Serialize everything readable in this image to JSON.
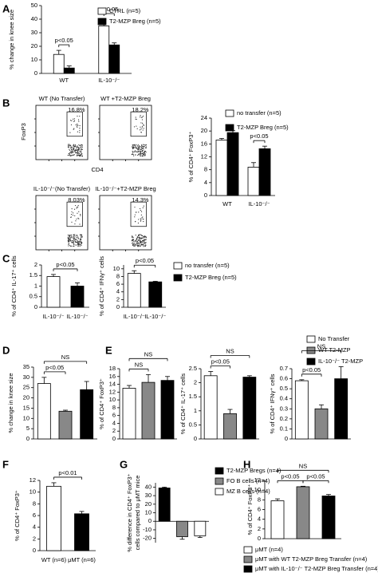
{
  "chart_data": [
    {
      "type": "bar",
      "panel": "A",
      "y_label": "% change in knee size",
      "categories": [
        "WT",
        "IL-10⁻/⁻"
      ],
      "series": [
        {
          "name": "CTRL (n=5)",
          "color": "#ffffff",
          "values": [
            14,
            35
          ],
          "errors": [
            3,
            5
          ]
        },
        {
          "name": "T2-MZP Breg (n=5)",
          "color": "#000000",
          "values": [
            4,
            21
          ],
          "errors": [
            1.5,
            1.5
          ]
        }
      ],
      "ylim": [
        0,
        50
      ],
      "yticks": [
        0,
        10,
        20,
        30,
        40,
        50
      ],
      "annotations": [
        "p<0.05",
        "p<0.05"
      ]
    },
    {
      "type": "flow",
      "panel": "B",
      "y_label": "FoxP3",
      "x_label": "CD4",
      "plots": [
        {
          "title": "WT (No Transfer)",
          "gate": "16.8%"
        },
        {
          "title": "WT +T2-MZP Breg",
          "gate": "18.2%"
        },
        {
          "title": "IL-10⁻/⁻(No Transfer)",
          "gate": "8.03%"
        },
        {
          "title": "IL-10⁻/⁻+T2-MZP Breg",
          "gate": "14.3%"
        }
      ]
    },
    {
      "type": "bar",
      "y_label": "% of CD4⁺ FoxP3⁺",
      "categories": [
        "WT",
        "IL-10⁻/⁻"
      ],
      "series": [
        {
          "name": "no transfer (n=5)",
          "color": "#ffffff",
          "values": [
            17.2,
            8.8
          ],
          "errors": [
            0.5,
            1.4
          ]
        },
        {
          "name": "T2-MZP Breg (n=5)",
          "color": "#000000",
          "values": [
            19.5,
            14.5
          ],
          "errors": [
            0.6,
            0.8
          ]
        }
      ],
      "ylim": [
        0,
        24
      ],
      "yticks": [
        0,
        4,
        8,
        12,
        16,
        20,
        24
      ],
      "annotations": [
        "p<0.05"
      ]
    },
    {
      "type": "bar",
      "panel": "C",
      "y_label": "% of CD4⁺ IL-17⁺ cells",
      "categories": [
        "IL-10⁻/⁻",
        "IL-10⁻/⁻"
      ],
      "values": [
        1.45,
        1.0
      ],
      "errors": [
        0.1,
        0.15
      ],
      "colors": [
        "#ffffff",
        "#000000"
      ],
      "ylim": [
        0,
        2
      ],
      "yticks": [
        0,
        0.5,
        1,
        1.5,
        2
      ],
      "annotations": [
        "p<0.05"
      ]
    },
    {
      "type": "bar",
      "y_label": "% of CD4⁺ IFNγ⁺ cells",
      "categories": [
        "IL-10⁻/⁻",
        "IL-10⁻/⁻"
      ],
      "values": [
        8.8,
        6.6
      ],
      "errors": [
        0.7,
        0.15
      ],
      "colors": [
        "#ffffff",
        "#000000"
      ],
      "ylim": [
        0,
        11
      ],
      "yticks": [
        0,
        2,
        4,
        6,
        8,
        10
      ],
      "annotations": [
        "p<0.05"
      ],
      "legend": [
        {
          "label": "no transfer (n=5)",
          "color": "#ffffff"
        },
        {
          "label": "T2-MZP Breg (n=5)",
          "color": "#000000"
        }
      ]
    },
    {
      "type": "bar",
      "panel": "D",
      "y_label": "% change in knee size",
      "categories": [
        null,
        null,
        null
      ],
      "values": [
        27,
        13.5,
        24
      ],
      "errors": [
        3,
        0.5,
        4
      ],
      "colors": [
        "#ffffff",
        "#888888",
        "#000000"
      ],
      "ylim": [
        0,
        35
      ],
      "yticks": [
        0,
        5,
        10,
        15,
        20,
        25,
        30,
        35
      ],
      "annotations": [
        "p<0.05",
        "NS"
      ]
    },
    {
      "type": "bar",
      "panel": "E",
      "y_label": "% of CD4⁺ FoxP3⁺",
      "categories": [
        null,
        null,
        null
      ],
      "values": [
        13,
        14.5,
        15
      ],
      "errors": [
        0.7,
        2,
        1
      ],
      "colors": [
        "#ffffff",
        "#888888",
        "#000000"
      ],
      "ylim": [
        0,
        18
      ],
      "yticks": [
        0,
        2,
        4,
        6,
        8,
        10,
        12,
        14,
        16,
        18
      ],
      "annotations": [
        "NS",
        "NS"
      ],
      "legend": [
        {
          "label": "No Transfer",
          "color": "#ffffff"
        },
        {
          "label": "WT T2-MZP",
          "color": "#888888"
        },
        {
          "label": "IL-10⁻/⁻ T2-MZP",
          "color": "#000000"
        }
      ]
    },
    {
      "type": "bar",
      "y_label": "% of CD4⁺ IL-17⁺ cells",
      "categories": [
        null,
        null,
        null
      ],
      "values": [
        2.25,
        0.9,
        2.2
      ],
      "errors": [
        0.15,
        0.15,
        0.05
      ],
      "colors": [
        "#ffffff",
        "#888888",
        "#000000"
      ],
      "ylim": [
        0,
        2.5
      ],
      "yticks": [
        0,
        0.5,
        1,
        1.5,
        2,
        2.5
      ],
      "annotations": [
        "p<0.05",
        "NS"
      ]
    },
    {
      "type": "bar",
      "y_label": "% of CD4⁺ IFNγ⁺ cells",
      "categories": [
        null,
        null,
        null
      ],
      "values": [
        0.58,
        0.3,
        0.6
      ],
      "errors": [
        0.01,
        0.04,
        0.12
      ],
      "colors": [
        "#ffffff",
        "#888888",
        "#000000"
      ],
      "ylim": [
        0,
        0.7
      ],
      "yticks": [
        0,
        0.1,
        0.2,
        0.3,
        0.4,
        0.5,
        0.6,
        0.7
      ],
      "annotations": [
        "p<0.05",
        "NS"
      ]
    },
    {
      "type": "bar",
      "panel": "F",
      "y_label": "% of CD4⁺ FoxP3⁺",
      "categories": [
        "WT (n=6)",
        "μMT (n=6)"
      ],
      "values": [
        11,
        6.3
      ],
      "errors": [
        0.6,
        0.4
      ],
      "colors": [
        "#ffffff",
        "#000000"
      ],
      "ylim": [
        0,
        12
      ],
      "yticks": [
        0,
        2,
        4,
        6,
        8,
        10,
        12
      ],
      "annotations": [
        "p<0.01"
      ]
    },
    {
      "type": "bar",
      "panel": "G",
      "y_label": [
        "% difference in CD4⁺ FoxP3⁺",
        "cells compared to μMT mice"
      ],
      "categories": [
        null,
        null,
        null
      ],
      "values": [
        39,
        -18,
        -17
      ],
      "errors": [
        1,
        3,
        2
      ],
      "colors": [
        "#000000",
        "#888888",
        "#ffffff"
      ],
      "ylim": [
        -25,
        45
      ],
      "yticks": [
        -20,
        -10,
        0,
        10,
        20,
        30,
        40
      ],
      "legend": [
        {
          "label": "T2-MZP Bregs (n=4)",
          "color": "#000000"
        },
        {
          "label": "FO B cells (n=4)",
          "color": "#888888"
        },
        {
          "label": "MZ B cells (n=4)",
          "color": "#ffffff"
        }
      ]
    },
    {
      "type": "bar",
      "panel": "H",
      "y_label": "% of CD4⁺ FoxP3⁺",
      "categories": [
        null,
        null,
        null
      ],
      "values": [
        7.8,
        10.7,
        8.8
      ],
      "errors": [
        0.4,
        0.1,
        0.3
      ],
      "colors": [
        "#ffffff",
        "#888888",
        "#000000"
      ],
      "ylim": [
        0,
        12
      ],
      "yticks": [
        0,
        2,
        4,
        6,
        8,
        10,
        12
      ],
      "annotations": [
        "p<0.05",
        "p<0.05",
        "NS"
      ],
      "legend": [
        {
          "label": "μMT (n=4)",
          "color": "#ffffff"
        },
        {
          "label": "μMT with WT T2-MZP Breg Transfer (n=4)",
          "color": "#888888"
        },
        {
          "label": "μMT with IL-10⁻/⁻ T2-MZP Breg Transfer (n=4)",
          "color": "#000000"
        }
      ]
    }
  ]
}
